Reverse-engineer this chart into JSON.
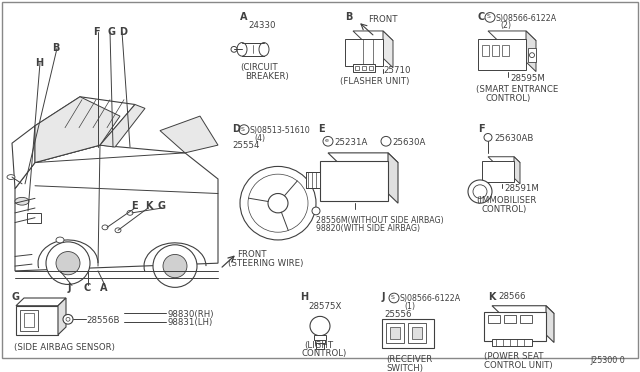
{
  "bg_color": "#ffffff",
  "line_color": "#404040",
  "border_color": "#aaaaaa",
  "components": {
    "A_label": "A",
    "A_part": "24330",
    "A_desc1": "(CIRCUIT",
    "A_desc2": "BREAKER)",
    "B_label": "B",
    "B_part": "25710",
    "B_desc": "(FLASHER UNIT)",
    "B_front": "FRONT",
    "C_label": "C",
    "C_screw": "S)08566-6122A",
    "C_screw2": "(2)",
    "C_part": "28595M",
    "C_desc1": "(SMART ENTRANCE",
    "C_desc2": "CONTROL)",
    "D_label": "D",
    "D_screw": "S)08513-51610",
    "D_screw2": "(4)",
    "D_part": "25554",
    "D_front": "FRONT",
    "D_desc": "(STEERING WIRE)",
    "E_label": "E",
    "E_s1": "25231A",
    "E_s2": "25630A",
    "E_p1": "28556M(WITHOUT SIDE AIRBAG)",
    "E_p2": "98820(WITH SIDE AIRBAG)",
    "F_label": "F",
    "F_screw": "25630AB",
    "F_part": "28591M",
    "F_desc1": "(IMMOBILISER",
    "F_desc2": "CONTROL)",
    "G_label": "G",
    "G_p1": "28556B",
    "G_p2": "98830(RH)",
    "G_p3": "98831(LH)",
    "G_desc": "(SIDE AIRBAG SENSOR)",
    "H_label": "H",
    "H_part": "28575X",
    "H_desc1": "(LIGHT",
    "H_desc2": "CONTROL)",
    "J_label": "J",
    "J_screw": "S)08566-6122A",
    "J_screw2": "(1)",
    "J_part": "25556",
    "J_desc1": "(RECEIVER",
    "J_desc2": "SWITCH)",
    "K_label": "K",
    "K_part": "28566",
    "K_desc1": "(POWER SEAT",
    "K_desc2": "CONTROL UNIT)",
    "watermark": "J25300 0"
  }
}
